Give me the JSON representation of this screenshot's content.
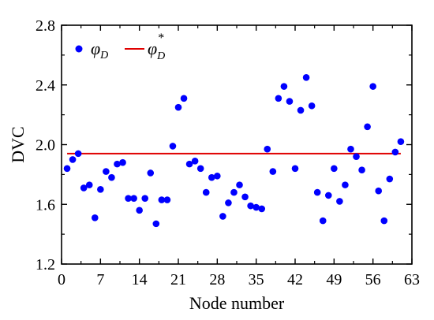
{
  "chart_data": {
    "type": "scatter",
    "xlabel": "Node number",
    "ylabel": "DVC",
    "xlim": [
      0,
      63
    ],
    "ylim": [
      1.2,
      2.8
    ],
    "xticks": [
      "0",
      "7",
      "14",
      "21",
      "28",
      "35",
      "42",
      "49",
      "56",
      "63"
    ],
    "xtick_values": [
      0,
      7,
      14,
      21,
      28,
      35,
      42,
      49,
      56,
      63
    ],
    "yticks": [
      "1.2",
      "1.6",
      "2.0",
      "2.4",
      "2.8"
    ],
    "ytick_values": [
      1.2,
      1.6,
      2.0,
      2.4,
      2.8
    ],
    "legend": {
      "position": "top-left",
      "points_label": {
        "main": "φ",
        "sub": "D"
      },
      "line_label": {
        "main": "φ",
        "sub": "D",
        "sup": "*"
      }
    },
    "points_color": "#0000ff",
    "line_color": "#e00000",
    "series": [
      {
        "values": [
          [
            1,
            1.84
          ],
          [
            2,
            1.9
          ],
          [
            3,
            1.94
          ],
          [
            4,
            1.71
          ],
          [
            5,
            1.73
          ],
          [
            6,
            1.51
          ],
          [
            7,
            1.7
          ],
          [
            8,
            1.82
          ],
          [
            9,
            1.78
          ],
          [
            10,
            1.87
          ],
          [
            11,
            1.88
          ],
          [
            12,
            1.64
          ],
          [
            13,
            1.64
          ],
          [
            14,
            1.56
          ],
          [
            15,
            1.64
          ],
          [
            16,
            1.81
          ],
          [
            17,
            1.47
          ],
          [
            18,
            1.63
          ],
          [
            19,
            1.63
          ],
          [
            20,
            1.99
          ],
          [
            21,
            2.25
          ],
          [
            22,
            2.31
          ],
          [
            23,
            1.87
          ],
          [
            24,
            1.89
          ],
          [
            25,
            1.84
          ],
          [
            26,
            1.68
          ],
          [
            27,
            1.78
          ],
          [
            28,
            1.79
          ],
          [
            29,
            1.52
          ],
          [
            30,
            1.61
          ],
          [
            31,
            1.68
          ],
          [
            32,
            1.73
          ],
          [
            33,
            1.65
          ],
          [
            34,
            1.59
          ],
          [
            35,
            1.58
          ],
          [
            36,
            1.57
          ],
          [
            37,
            1.97
          ],
          [
            38,
            1.82
          ],
          [
            39,
            2.31
          ],
          [
            40,
            2.39
          ],
          [
            41,
            2.29
          ],
          [
            42,
            1.84
          ],
          [
            43,
            2.23
          ],
          [
            44,
            2.45
          ],
          [
            45,
            2.26
          ],
          [
            46,
            1.68
          ],
          [
            47,
            1.49
          ],
          [
            48,
            1.66
          ],
          [
            49,
            1.84
          ],
          [
            50,
            1.62
          ],
          [
            51,
            1.73
          ],
          [
            52,
            1.97
          ],
          [
            53,
            1.92
          ],
          [
            54,
            1.83
          ],
          [
            55,
            2.12
          ],
          [
            56,
            2.39
          ],
          [
            57,
            1.69
          ],
          [
            58,
            1.49
          ],
          [
            59,
            1.77
          ],
          [
            60,
            1.95
          ],
          [
            61,
            2.02
          ]
        ]
      },
      {
        "type": "line",
        "values": [
          [
            1,
            1.94
          ],
          [
            61,
            1.94
          ]
        ]
      }
    ]
  }
}
